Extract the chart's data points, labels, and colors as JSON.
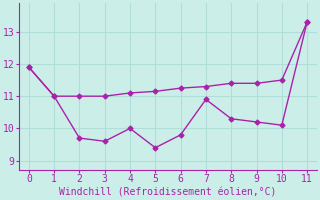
{
  "x": [
    0,
    1,
    2,
    3,
    4,
    5,
    6,
    7,
    8,
    9,
    10,
    11
  ],
  "line1": [
    11.9,
    11.0,
    11.0,
    11.0,
    11.1,
    11.15,
    11.25,
    11.3,
    11.4,
    11.4,
    11.5,
    13.3
  ],
  "line2": [
    11.9,
    11.0,
    9.7,
    9.6,
    10.0,
    9.4,
    9.8,
    10.9,
    10.3,
    10.2,
    10.1,
    13.3
  ],
  "line_color": "#aa22aa",
  "bg_color": "#cceee8",
  "xlabel": "Windchill (Refroidissement éolien,°C)",
  "xlabel_color": "#aa22aa",
  "xlabel_fontsize": 7,
  "tick_fontsize": 7,
  "yticks": [
    9,
    10,
    11,
    12,
    13
  ],
  "xticks": [
    0,
    1,
    2,
    3,
    4,
    5,
    6,
    7,
    8,
    9,
    10,
    11
  ],
  "ylim": [
    8.7,
    13.9
  ],
  "xlim": [
    -0.4,
    11.4
  ],
  "grid_color": "#b0ddd8",
  "marker": "D",
  "markersize": 2.5,
  "linewidth": 1.0
}
